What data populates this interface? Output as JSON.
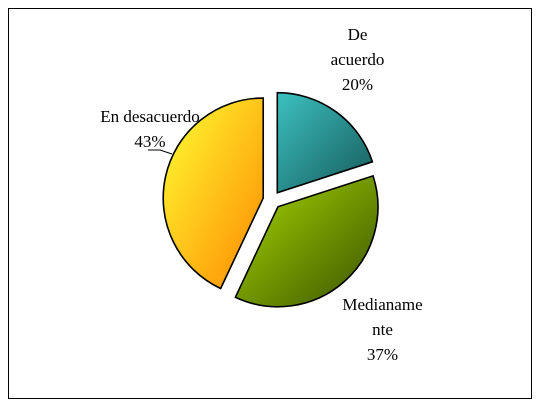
{
  "chart_data": {
    "type": "pie",
    "categories": [
      "De acuerdo",
      "Medianamente",
      "En desacuerdo"
    ],
    "values": [
      20,
      37,
      43
    ],
    "value_labels": [
      "20%",
      "37%",
      "43%"
    ],
    "colors": [
      [
        "#3cc0c0",
        "#175a5a"
      ],
      [
        "#a8d800",
        "#3a5200"
      ],
      [
        "#ffff33",
        "#ff8800"
      ]
    ]
  }
}
